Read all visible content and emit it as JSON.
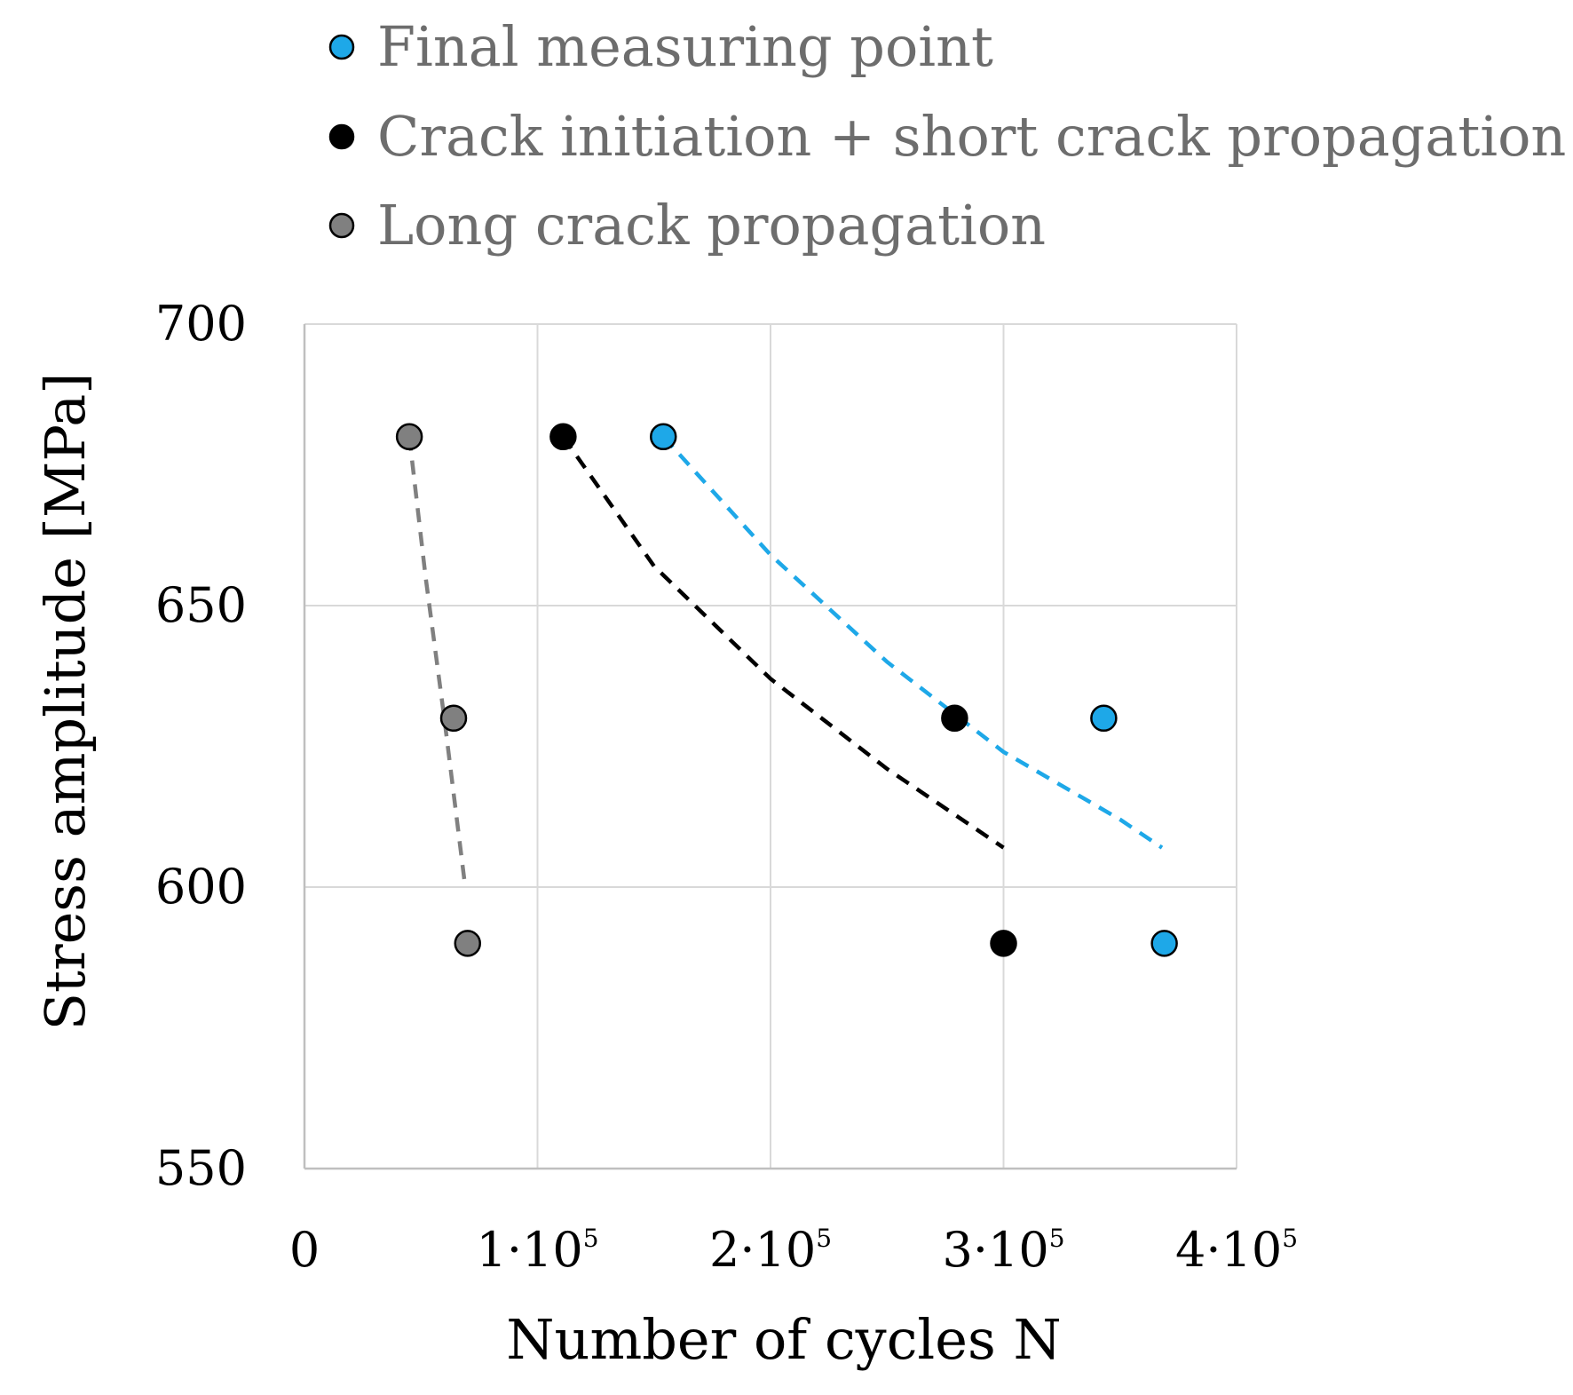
{
  "chart_data": {
    "type": "scatter",
    "title": "",
    "xlabel": "Number of cycles N",
    "ylabel": "Stress amplitude [MPa]",
    "xlim": [
      0,
      400000
    ],
    "ylim": [
      550,
      700
    ],
    "grid": true,
    "legend_position": "top",
    "x_ticks": [
      {
        "value": 0,
        "base": "0",
        "exp": ""
      },
      {
        "value": 100000,
        "base": "1·10",
        "exp": "5"
      },
      {
        "value": 200000,
        "base": "2·10",
        "exp": "5"
      },
      {
        "value": 300000,
        "base": "3·10",
        "exp": "5"
      },
      {
        "value": 400000,
        "base": "4·10",
        "exp": "5"
      }
    ],
    "y_ticks": [
      {
        "value": 550,
        "label": "550"
      },
      {
        "value": 600,
        "label": "600"
      },
      {
        "value": 650,
        "label": "650"
      },
      {
        "value": 700,
        "label": "700"
      }
    ],
    "series": [
      {
        "name": "Final measuring point",
        "color": "#1ea8e8",
        "points": [
          {
            "x": 154000,
            "y": 680
          },
          {
            "x": 343000,
            "y": 630
          },
          {
            "x": 369000,
            "y": 590
          }
        ],
        "trendline": {
          "color": "#1ea8e8",
          "points": [
            {
              "x": 154000,
              "y": 680
            },
            {
              "x": 200000,
              "y": 659
            },
            {
              "x": 250000,
              "y": 640
            },
            {
              "x": 300000,
              "y": 624
            },
            {
              "x": 350000,
              "y": 612
            },
            {
              "x": 368000,
              "y": 607
            }
          ]
        }
      },
      {
        "name": "Crack initiation + short crack propagation",
        "color": "#000000",
        "points": [
          {
            "x": 111000,
            "y": 680
          },
          {
            "x": 279000,
            "y": 630
          },
          {
            "x": 300000,
            "y": 590
          }
        ],
        "trendline": {
          "color": "#000000",
          "points": [
            {
              "x": 111000,
              "y": 680
            },
            {
              "x": 150000,
              "y": 657
            },
            {
              "x": 200000,
              "y": 637
            },
            {
              "x": 250000,
              "y": 621
            },
            {
              "x": 300000,
              "y": 607
            }
          ]
        }
      },
      {
        "name": "Long crack propagation",
        "color": "#808080",
        "points": [
          {
            "x": 45000,
            "y": 680
          },
          {
            "x": 64000,
            "y": 630
          },
          {
            "x": 70000,
            "y": 590
          }
        ],
        "trendline": {
          "color": "#808080",
          "points": [
            {
              "x": 45000,
              "y": 680
            },
            {
              "x": 52000,
              "y": 655
            },
            {
              "x": 60000,
              "y": 630
            },
            {
              "x": 69000,
              "y": 600
            }
          ]
        }
      }
    ]
  }
}
